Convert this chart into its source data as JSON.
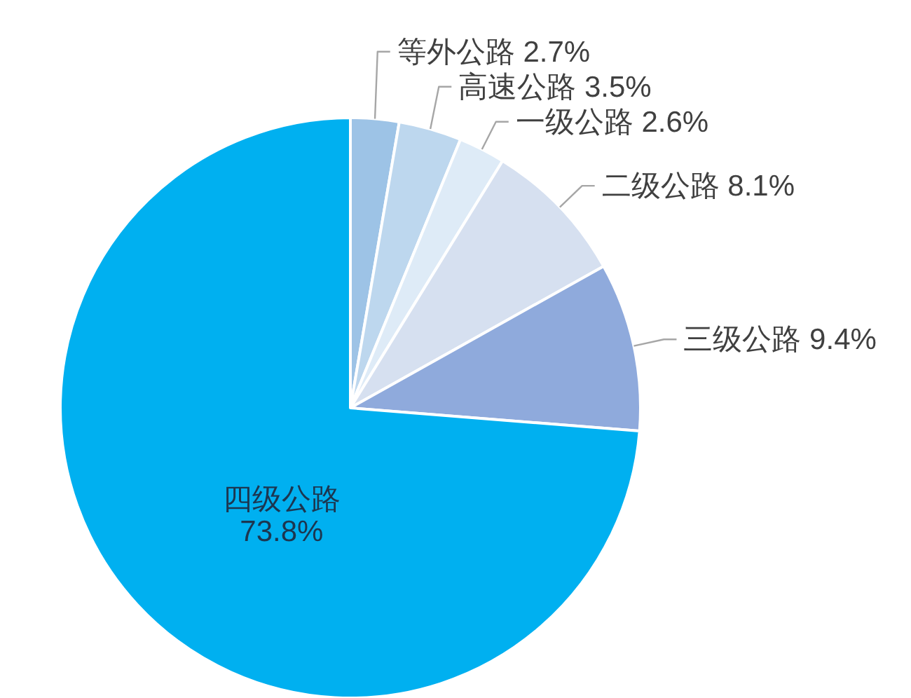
{
  "chart_data": {
    "type": "pie",
    "categories": [
      "等外公路",
      "高速公路",
      "一级公路",
      "二级公路",
      "三级公路",
      "四级公路"
    ],
    "values": [
      2.7,
      3.5,
      2.6,
      8.1,
      9.4,
      73.8
    ],
    "value_labels": [
      "2.7%",
      "3.5%",
      "2.6%",
      "8.1%",
      "9.4%",
      "73.8%"
    ],
    "colors": [
      "#9dc3e6",
      "#bdd7ee",
      "#deebf7",
      "#d6e0f0",
      "#8faadc",
      "#00b0f0"
    ]
  }
}
